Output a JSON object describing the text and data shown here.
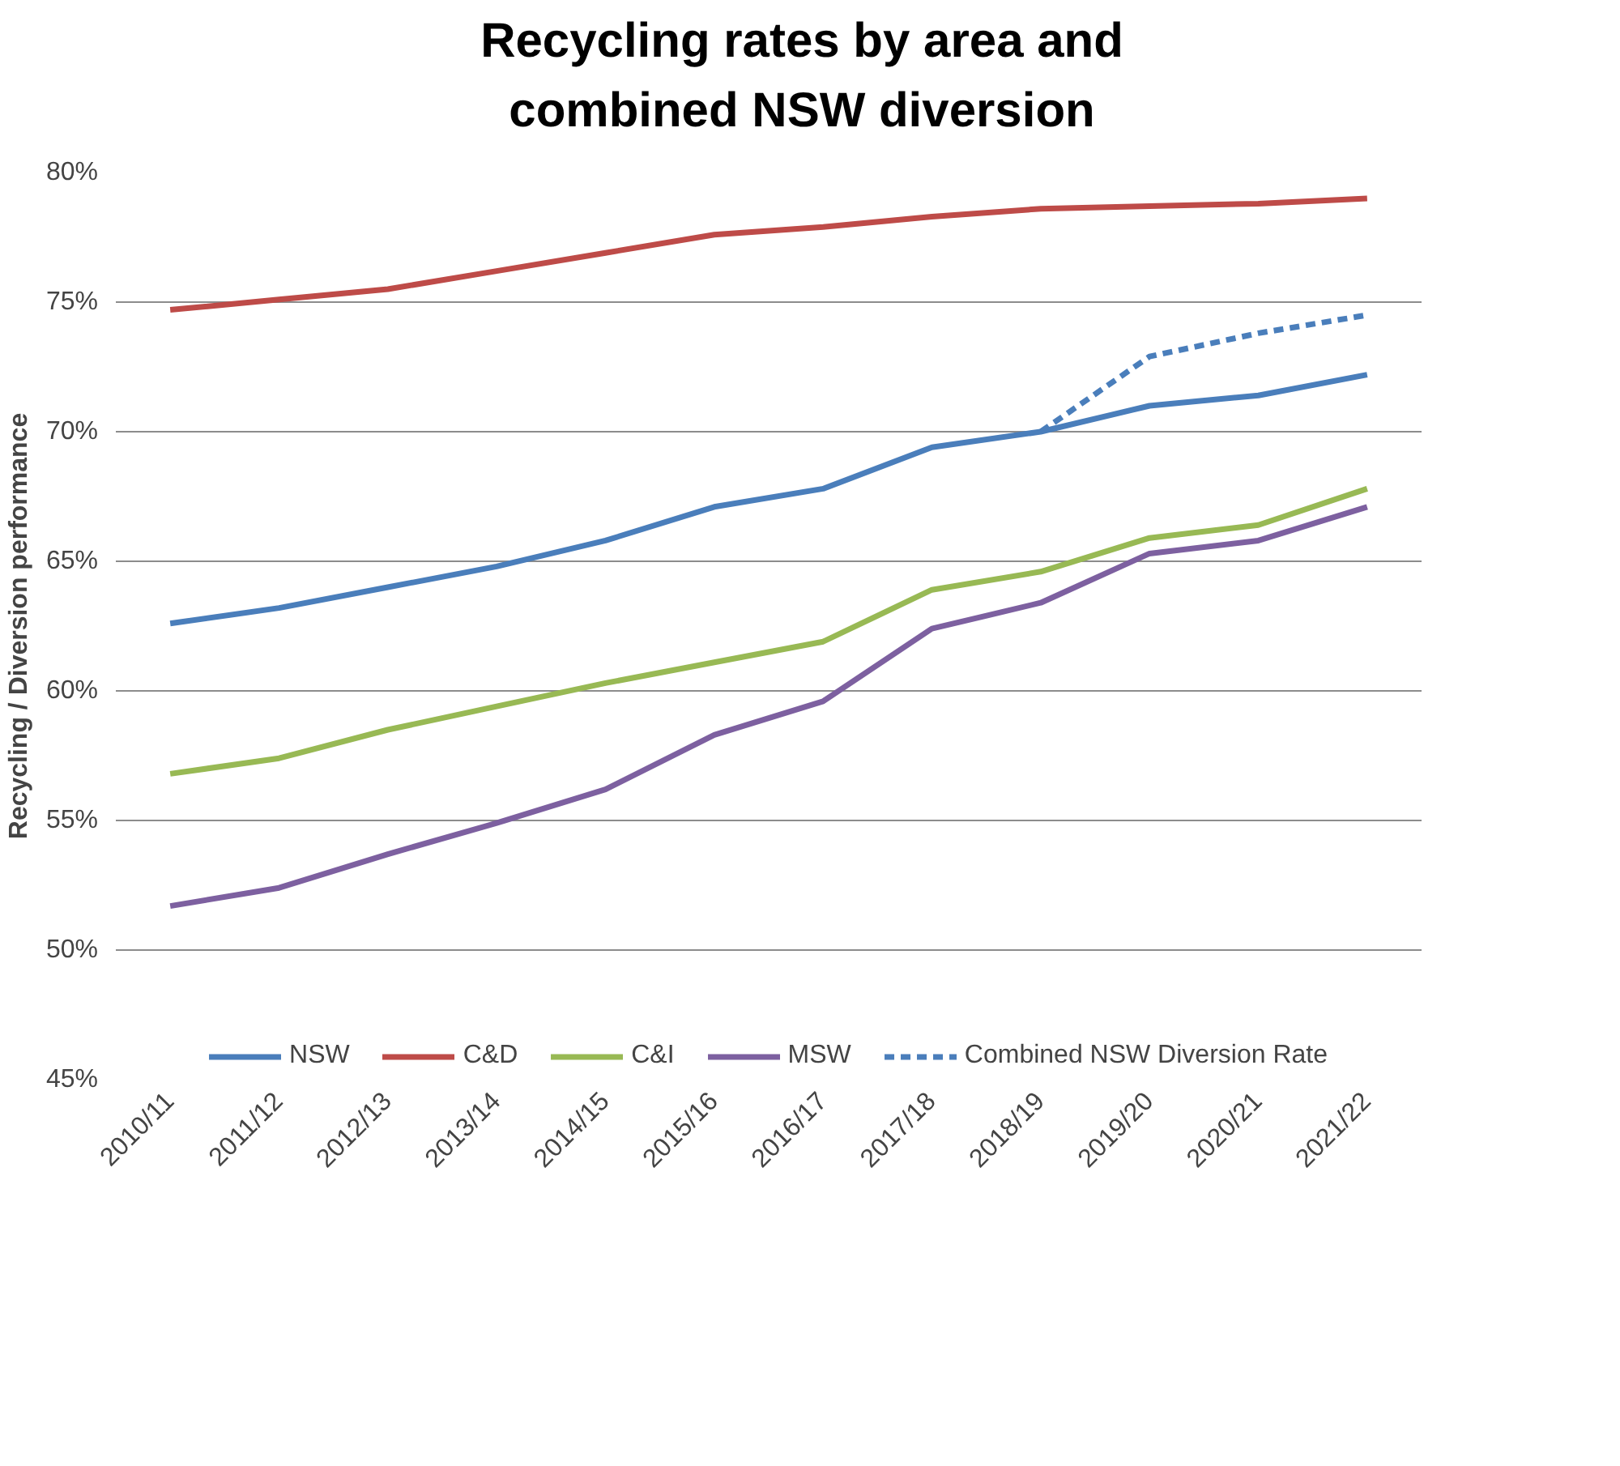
{
  "chart_data": {
    "type": "line",
    "title": "Recycling rates by area and combined NSW diversion",
    "ylabel": "Recycling / Diversion performance",
    "categories": [
      "2010/11",
      "2011/12",
      "2012/13",
      "2013/14",
      "2014/15",
      "2015/16",
      "2016/17",
      "2017/18",
      "2018/19",
      "2019/20",
      "2020/21",
      "2021/22"
    ],
    "series": [
      {
        "name": "NSW",
        "color": "#4a7ebb",
        "values": [
          62.6,
          63.2,
          64.0,
          64.8,
          65.8,
          67.1,
          67.8,
          69.4,
          70.0,
          71.0,
          71.4,
          72.2
        ]
      },
      {
        "name": "C&D",
        "color": "#be4b48",
        "values": [
          74.7,
          75.1,
          75.5,
          76.2,
          76.9,
          77.6,
          77.9,
          78.3,
          78.6,
          78.7,
          78.8,
          79.0
        ]
      },
      {
        "name": "C&I",
        "color": "#98b954",
        "values": [
          56.8,
          57.4,
          58.5,
          59.4,
          60.3,
          61.1,
          61.9,
          63.9,
          64.6,
          65.9,
          66.4,
          67.8
        ]
      },
      {
        "name": "MSW",
        "color": "#7d60a0",
        "values": [
          51.7,
          52.4,
          53.7,
          54.9,
          56.2,
          58.3,
          59.6,
          62.4,
          63.4,
          65.3,
          65.8,
          67.1
        ]
      },
      {
        "name": "Combined NSW Diversion Rate",
        "color": "#4a7ebb",
        "line_style": "dashed",
        "values": [
          null,
          null,
          null,
          null,
          null,
          null,
          null,
          null,
          70.0,
          72.9,
          73.8,
          74.5
        ]
      }
    ],
    "ylim": [
      45,
      80
    ],
    "yticks": [
      {
        "value": 45,
        "label": "45%"
      },
      {
        "value": 50,
        "label": "50%"
      },
      {
        "value": 55,
        "label": "55%"
      },
      {
        "value": 60,
        "label": "60%"
      },
      {
        "value": 65,
        "label": "65%"
      },
      {
        "value": 70,
        "label": "70%"
      },
      {
        "value": 75,
        "label": "75%"
      },
      {
        "value": 80,
        "label": "80%"
      }
    ],
    "grid": "y",
    "legend": "bottom",
    "marker": "none",
    "line_style": "solid"
  }
}
